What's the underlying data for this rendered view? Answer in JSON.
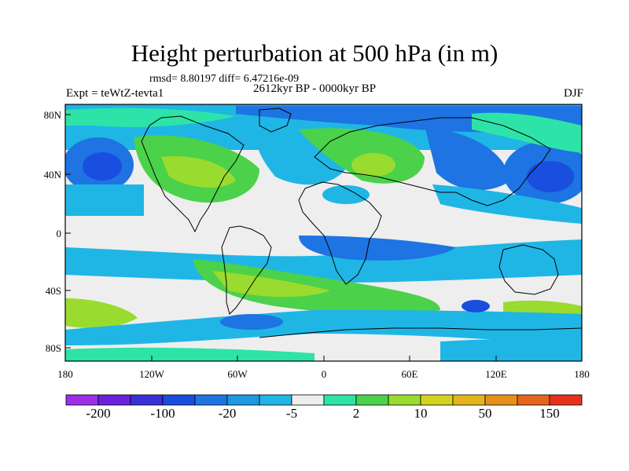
{
  "title": "Height perturbation at 500 hPa (in m)",
  "stats": "rmsd= 8.80197 diff= 6.47216e-09",
  "experiment": "Expt = teWtZ-tevta1",
  "period": "2612kyr BP - 0000kyr BP",
  "season": "DJF",
  "lat_ticks": [
    "80N",
    "40N",
    "0",
    "40S",
    "80S"
  ],
  "lon_ticks": [
    "180",
    "120W",
    "60W",
    "0",
    "60E",
    "120E",
    "180"
  ],
  "colorbar": {
    "labels": [
      "-200",
      "-100",
      "-20",
      "-5",
      "2",
      "10",
      "50",
      "150"
    ],
    "colors": [
      "#9b30e8",
      "#6a22dc",
      "#3a2fd6",
      "#1a4ede",
      "#1d74e2",
      "#1f97e4",
      "#1fb6e6",
      "#eeeeee",
      "#2ee3a7",
      "#4cd14a",
      "#9adb2f",
      "#d4d21f",
      "#e3b51a",
      "#e6901a",
      "#e6651c",
      "#e8311c"
    ]
  },
  "field_colors": {
    "strong_neg": "#1a4ede",
    "mid_neg": "#1d74e2",
    "light_neg": "#1fb6e6",
    "neutral": "#eeeeee",
    "light_pos": "#2ee3a7",
    "mid_pos": "#4cd14a",
    "strong_pos": "#9adb2f",
    "very_pos": "#d4d21f"
  }
}
